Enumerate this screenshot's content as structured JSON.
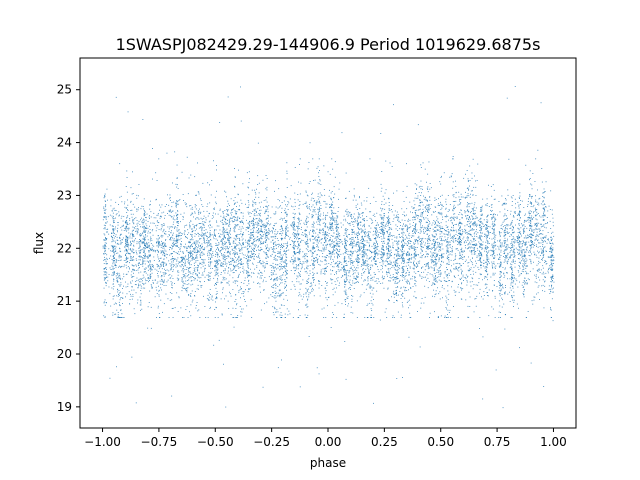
{
  "chart_data": {
    "type": "scatter",
    "title": "1SWASPJ082429.29-144906.9 Period 1019629.6875s",
    "xlabel": "phase",
    "ylabel": "flux",
    "xlim": [
      -1.1,
      1.1
    ],
    "ylim": [
      18.6,
      25.6
    ],
    "xticks": [
      -1.0,
      -0.75,
      -0.5,
      -0.25,
      0.0,
      0.25,
      0.5,
      0.75,
      1.0
    ],
    "xtick_labels": [
      "−1.00",
      "−0.75",
      "−0.50",
      "−0.25",
      "0.00",
      "0.25",
      "0.50",
      "0.75",
      "1.00"
    ],
    "yticks": [
      19,
      20,
      21,
      22,
      23,
      24,
      25
    ],
    "ytick_labels": [
      "19",
      "20",
      "21",
      "22",
      "23",
      "24",
      "25"
    ],
    "grid": false,
    "point_color": "#1f77b4",
    "phase_range": [
      -1.0,
      1.0
    ],
    "flux_center": 22.0,
    "flux_core_range": [
      20.7,
      23.7
    ],
    "flux_outlier_range": [
      18.9,
      25.1
    ]
  }
}
